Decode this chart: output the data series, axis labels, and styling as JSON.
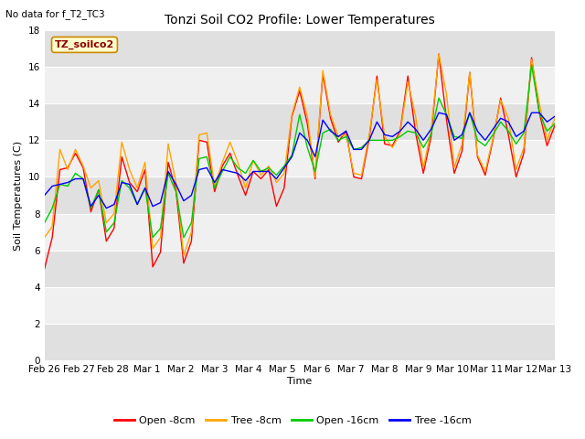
{
  "title": "Tonzi Soil CO2 Profile: Lower Temperatures",
  "subtitle": "No data for f_T2_TC3",
  "watermark": "TZ_soilco2",
  "ylabel": "Soil Temperatures (C)",
  "xlabel": "Time",
  "ylim": [
    0,
    18
  ],
  "yticks": [
    0,
    2,
    4,
    6,
    8,
    10,
    12,
    14,
    16,
    18
  ],
  "bg_color": "#ffffff",
  "plot_bg_light": "#f0f0f0",
  "plot_bg_dark": "#e0e0e0",
  "line_colors": {
    "open8": "#ff0000",
    "tree8": "#ffa500",
    "open16": "#00cc00",
    "tree16": "#0000ff"
  },
  "legend_labels": [
    "Open -8cm",
    "Tree -8cm",
    "Open -16cm",
    "Tree -16cm"
  ],
  "x_tick_labels": [
    "Feb 26",
    "Feb 27",
    "Feb 28",
    "Mar 1",
    "Mar 2",
    "Mar 3",
    "Mar 4",
    "Mar 5",
    "Mar 6",
    "Mar 7",
    "Mar 8",
    "Mar 9",
    "Mar 10",
    "Mar 11",
    "Mar 12",
    "Mar 13"
  ],
  "open8_data": [
    5.0,
    6.7,
    10.4,
    10.5,
    11.3,
    10.5,
    8.1,
    9.3,
    6.5,
    7.2,
    11.1,
    9.7,
    9.2,
    10.4,
    5.1,
    5.9,
    10.8,
    9.3,
    5.3,
    6.5,
    12.0,
    11.9,
    9.2,
    10.6,
    11.3,
    10.1,
    9.0,
    10.3,
    9.9,
    10.4,
    8.4,
    9.4,
    13.3,
    14.7,
    12.9,
    9.9,
    15.6,
    13.2,
    11.9,
    12.5,
    10.0,
    9.9,
    12.1,
    15.5,
    11.8,
    11.7,
    12.5,
    15.5,
    12.4,
    10.2,
    12.2,
    16.7,
    13.1,
    10.2,
    11.4,
    15.7,
    11.1,
    10.1,
    12.0,
    14.3,
    12.3,
    10.0,
    11.3,
    16.5,
    13.5,
    11.7,
    12.8
  ],
  "tree8_data": [
    6.7,
    7.3,
    11.5,
    10.4,
    11.5,
    10.6,
    9.4,
    9.8,
    7.5,
    8.0,
    11.9,
    10.4,
    9.4,
    10.8,
    6.1,
    6.7,
    11.8,
    9.7,
    5.7,
    7.0,
    12.3,
    12.4,
    9.5,
    10.8,
    11.9,
    10.8,
    9.4,
    10.9,
    10.1,
    10.6,
    9.7,
    10.2,
    13.4,
    14.9,
    13.3,
    10.0,
    15.8,
    13.4,
    12.2,
    12.3,
    10.2,
    10.1,
    12.3,
    15.3,
    12.2,
    11.6,
    12.4,
    15.2,
    13.3,
    10.5,
    12.5,
    16.7,
    14.5,
    10.5,
    11.8,
    15.7,
    11.2,
    10.3,
    12.1,
    14.2,
    13.2,
    10.4,
    11.6,
    16.4,
    14.0,
    12.0,
    13.2
  ],
  "open16_data": [
    7.5,
    8.3,
    9.6,
    9.5,
    10.2,
    9.9,
    8.3,
    9.3,
    7.0,
    7.5,
    9.8,
    9.4,
    8.5,
    9.4,
    6.7,
    7.2,
    10.2,
    9.2,
    6.7,
    7.5,
    11.0,
    11.1,
    9.4,
    10.3,
    11.1,
    10.5,
    10.2,
    10.9,
    10.3,
    10.5,
    10.1,
    10.6,
    11.2,
    13.4,
    11.6,
    10.3,
    12.4,
    12.6,
    12.0,
    12.2,
    11.5,
    11.6,
    12.0,
    12.0,
    12.0,
    12.0,
    12.2,
    12.5,
    12.4,
    11.6,
    12.3,
    14.3,
    13.4,
    12.2,
    12.1,
    13.5,
    12.0,
    11.7,
    12.3,
    13.0,
    12.5,
    11.8,
    12.4,
    16.1,
    13.5,
    12.5,
    12.9
  ],
  "tree16_data": [
    9.0,
    9.5,
    9.6,
    9.7,
    9.9,
    9.9,
    8.4,
    9.0,
    8.3,
    8.5,
    9.7,
    9.6,
    8.5,
    9.4,
    8.4,
    8.6,
    10.3,
    9.6,
    8.7,
    9.0,
    10.4,
    10.5,
    9.7,
    10.4,
    10.3,
    10.2,
    9.8,
    10.3,
    10.3,
    10.3,
    9.9,
    10.5,
    11.1,
    12.4,
    12.0,
    11.1,
    13.1,
    12.5,
    12.2,
    12.5,
    11.5,
    11.5,
    12.0,
    13.0,
    12.3,
    12.2,
    12.5,
    13.0,
    12.6,
    12.0,
    12.6,
    13.5,
    13.4,
    12.0,
    12.3,
    13.5,
    12.5,
    12.0,
    12.6,
    13.2,
    13.0,
    12.2,
    12.5,
    13.5,
    13.5,
    13.0,
    13.3
  ]
}
